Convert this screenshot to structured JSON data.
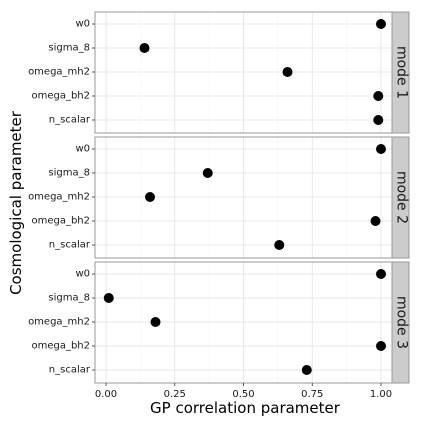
{
  "chart_data": {
    "type": "scatter",
    "title": "",
    "xlabel": "GP correlation parameter",
    "ylabel": "Cosmological parameter",
    "xlim": [
      -0.04,
      1.04
    ],
    "xticks": [
      0.0,
      0.25,
      0.5,
      0.75,
      1.0
    ],
    "xtick_labels": [
      "0.00",
      "0.25",
      "0.50",
      "0.75",
      "1.00"
    ],
    "grid": true,
    "categories": [
      "w0",
      "sigma_8",
      "omega_mh2",
      "omega_bh2",
      "n_scalar"
    ],
    "facets": [
      {
        "name": "mode 1",
        "values": [
          1.0,
          0.14,
          0.66,
          0.99,
          0.99
        ]
      },
      {
        "name": "mode 2",
        "values": [
          1.0,
          0.37,
          0.16,
          0.98,
          0.63
        ]
      },
      {
        "name": "mode 3",
        "values": [
          1.0,
          0.01,
          0.18,
          1.0,
          0.73
        ]
      }
    ],
    "colors": {
      "panel_bg": "#ffffff",
      "grid_major": "#e3e3e3",
      "grid_minor": "#f2f2f2",
      "panel_border": "#999999",
      "strip_bg": "#cccccc",
      "point": "#000000"
    }
  }
}
